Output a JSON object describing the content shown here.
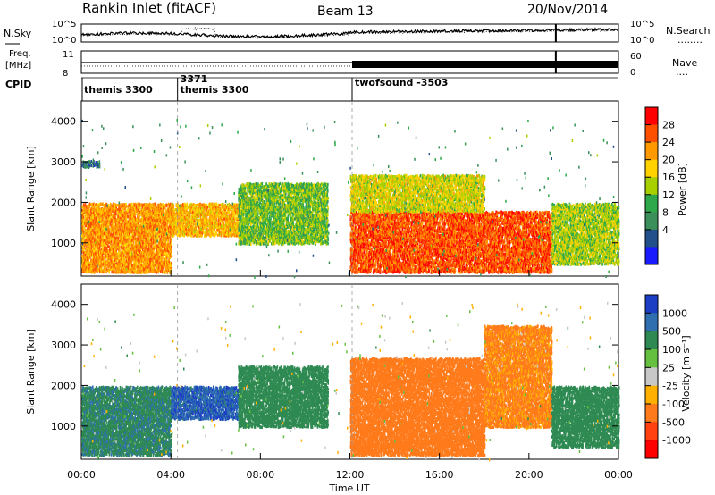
{
  "header": {
    "station": "Rankin Inlet (fitACF)",
    "beam": "Beam 13",
    "date": "20/Nov/2014"
  },
  "strip_labels": {
    "nsky": "N.Sky",
    "nsearch": "N.Search",
    "nsearch_dots": "........",
    "freq_line1": "Freq.",
    "freq_line2": "[MHz]",
    "nave": "Nave",
    "nave_dots": "....",
    "cpid": "CPID",
    "noise_ticks": [
      "10^5",
      "10^0"
    ],
    "freq_ticks": [
      "11",
      "8"
    ],
    "nave_ticks": [
      "60",
      "0"
    ]
  },
  "cpid_segments": [
    {
      "label": "themis 3300",
      "start_hour": 0
    },
    {
      "label": "3371",
      "start_hour": 4.3
    },
    {
      "label": "themis 3300",
      "start_hour": 4.3
    },
    {
      "label": "twofsound -3503",
      "start_hour": 12.1
    }
  ],
  "colorbars": {
    "power": {
      "title": "Power [dB]",
      "tick_labels": [
        "28",
        "24",
        "20",
        "16",
        "12",
        "8",
        "4"
      ],
      "colors": [
        "#ff0000",
        "#ff5000",
        "#ff9900",
        "#ffd200",
        "#a8d000",
        "#2ea84a",
        "#3a8f5a",
        "#22508a",
        "#1a1aff"
      ]
    },
    "velocity": {
      "title": "Velocity [m s⁻¹]",
      "tick_labels": [
        "1000",
        "500",
        "100",
        "25",
        "-25",
        "-100",
        "-500",
        "-1000"
      ],
      "colors": [
        "#1c3ec4",
        "#2f6fb0",
        "#2e8a52",
        "#66c040",
        "#c8c8c8",
        "#ffb000",
        "#ff7a1a",
        "#ff4010",
        "#ff0000"
      ]
    }
  },
  "chart_data": [
    {
      "type": "heatmap",
      "variable": "Power",
      "ylabel": "Slant Range [km]",
      "ylim": [
        180,
        4500
      ],
      "yticks": [
        "1000",
        "2000",
        "3000",
        "4000"
      ],
      "xlim_hours": [
        0,
        24
      ],
      "regions": [
        {
          "t0": 0.0,
          "t1": 4.0,
          "r0": 300,
          "r1": 2000,
          "level": 24
        },
        {
          "t0": 4.0,
          "t1": 7.0,
          "r0": 1200,
          "r1": 2000,
          "level": 22
        },
        {
          "t0": 7.0,
          "t1": 11.0,
          "r0": 1000,
          "r1": 2500,
          "level": 14
        },
        {
          "t0": 12.0,
          "t1": 21.0,
          "r0": 300,
          "r1": 1800,
          "level": 28
        },
        {
          "t0": 12.0,
          "t1": 18.0,
          "r0": 1800,
          "r1": 2700,
          "level": 18
        },
        {
          "t0": 21.0,
          "t1": 24.0,
          "r0": 500,
          "r1": 2000,
          "level": 16
        },
        {
          "t0": 0.0,
          "t1": 0.8,
          "r0": 2900,
          "r1": 3050,
          "level": 6
        }
      ]
    },
    {
      "type": "heatmap",
      "variable": "Velocity",
      "ylabel": "Slant Range [km]",
      "xlabel": "Time UT",
      "ylim": [
        180,
        4500
      ],
      "yticks": [
        "1000",
        "2000",
        "3000",
        "4000"
      ],
      "xticks": [
        "00:00",
        "04:00",
        "08:00",
        "12:00",
        "16:00",
        "20:00",
        "00:00"
      ],
      "xlim_hours": [
        0,
        24
      ],
      "regions": [
        {
          "t0": 0.0,
          "t1": 4.0,
          "r0": 300,
          "r1": 2000,
          "level": 400
        },
        {
          "t0": 4.0,
          "t1": 7.0,
          "r0": 1200,
          "r1": 2000,
          "level": 900
        },
        {
          "t0": 7.0,
          "t1": 11.0,
          "r0": 1000,
          "r1": 2500,
          "level": 300
        },
        {
          "t0": 12.0,
          "t1": 18.0,
          "r0": 300,
          "r1": 2700,
          "level": -300
        },
        {
          "t0": 18.0,
          "t1": 21.0,
          "r0": 1000,
          "r1": 3500,
          "level": -150
        },
        {
          "t0": 21.0,
          "t1": 24.0,
          "r0": 500,
          "r1": 2000,
          "level": 300
        }
      ]
    }
  ]
}
